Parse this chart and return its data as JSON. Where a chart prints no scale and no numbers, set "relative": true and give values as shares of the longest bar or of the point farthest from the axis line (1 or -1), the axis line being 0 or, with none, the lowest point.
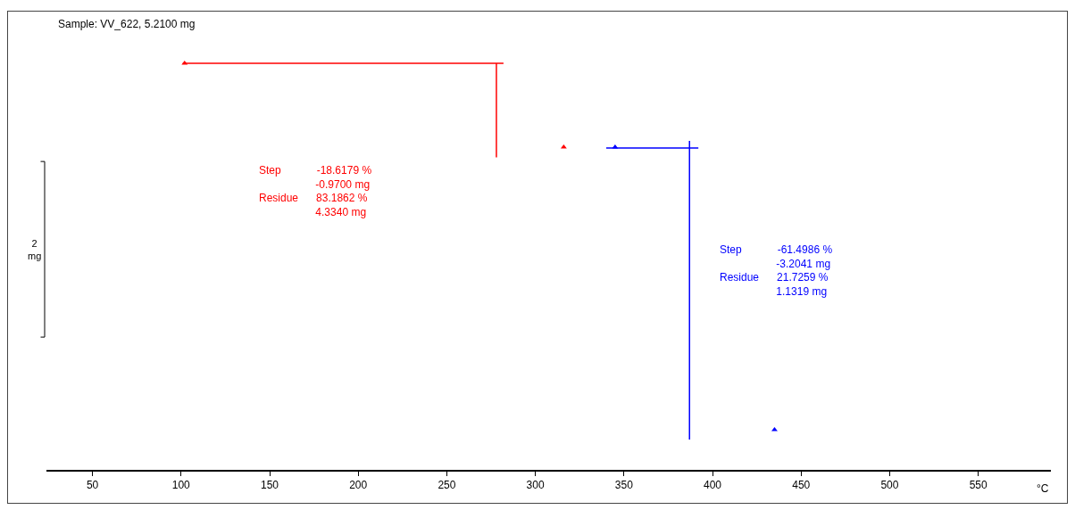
{
  "chart_data": {
    "type": "line",
    "relative": true,
    "xlabel": "°C",
    "ylabel": "2 mg",
    "xlim": [
      24,
      591
    ],
    "grid": false,
    "line_style": "solid",
    "marker": "none",
    "xticks": [
      50,
      100,
      150,
      200,
      250,
      300,
      350,
      400,
      450,
      500,
      550
    ],
    "series": [
      {
        "color": "#ff0000",
        "x": [
          101,
          282,
          null,
          278,
          278
        ],
        "values": [
          1,
          1,
          null,
          1,
          0.75
        ]
      },
      {
        "color": "#0000ff",
        "x": [
          340,
          392,
          null,
          387,
          387
        ],
        "values": [
          0.775,
          0.775,
          null,
          0.794,
          0
        ]
      },
      {
        "type": "scatter",
        "marker": "triangle",
        "color": "#ff0000",
        "x": [
          102,
          316
        ],
        "values": [
          1,
          0.777
        ]
      },
      {
        "type": "scatter",
        "marker": "triangle",
        "color": "#0000ff",
        "x": [
          345,
          435
        ],
        "values": [
          0.777,
          0.026
        ]
      }
    ],
    "annotations": [
      "Sample: VV_622, 5.2100 mg",
      "Step\t-18.6179 %\n\t-0.9700 mg\nResidue\t83.1862 %\n\t4.3340 mg",
      "Step\t-61.4986 %\n\t-3.2041 mg\nResidue\t21.7259 %\n\t1.1319 mg"
    ]
  }
}
